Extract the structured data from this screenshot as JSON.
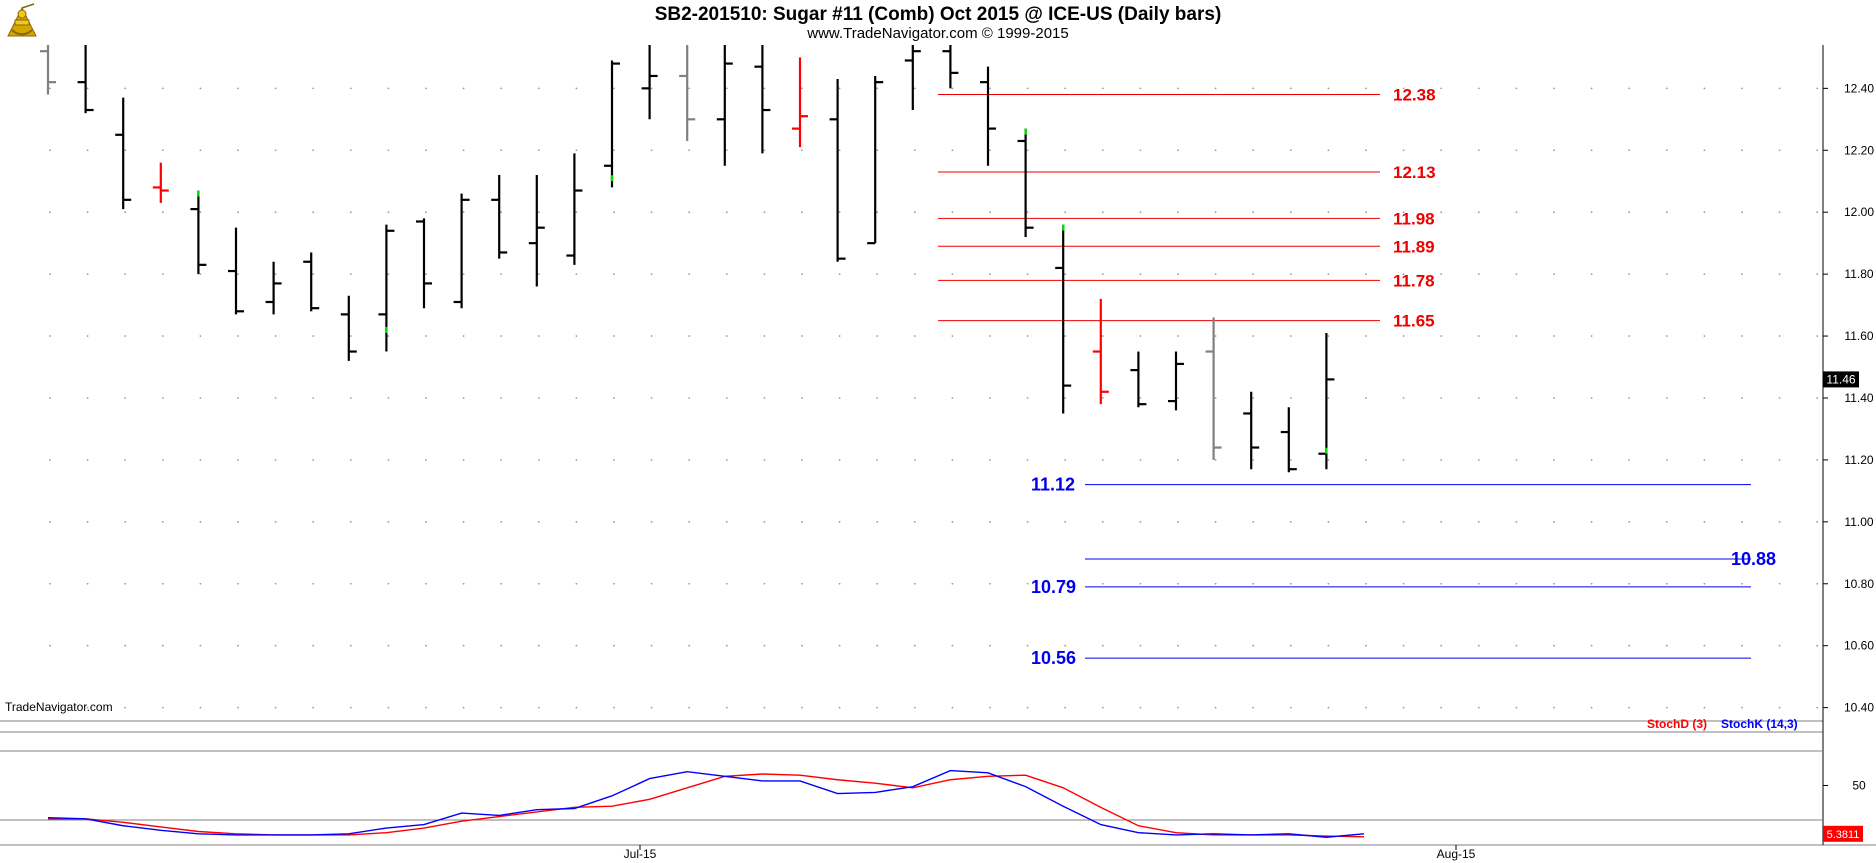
{
  "header": {
    "title": "SB2-201510:  Sugar #11 (Comb) Oct 2015 @ ICE-US  (Daily bars)",
    "subtitle": "www.TradeNavigator.com © 1999-2015",
    "watermark": "TradeNavigator.com"
  },
  "colors": {
    "bar_down": "#000000",
    "bar_up_tick": "#00dd00",
    "bar_outside": "#ff0000",
    "bar_inside": "#808080",
    "resistance": "#ee0000",
    "support": "#0000ee",
    "stoch_d": "#ff0000",
    "stoch_k": "#0000ff",
    "last_price_bg": "#000000",
    "stoch_last_bg": "#ff0000"
  },
  "chart_data": [
    {
      "type": "ohlc",
      "title": "SB2-201510:  Sugar #11 (Comb) Oct 2015 @ ICE-US  (Daily bars)",
      "ylim": [
        10.36,
        12.54
      ],
      "y_ticks": [
        "12.40",
        "12.20",
        "12.00",
        "11.80",
        "11.60",
        "11.40",
        "11.20",
        "11.00",
        "10.80",
        "10.60",
        "10.40"
      ],
      "x_ticks": [
        "Jul-15",
        "Aug-15"
      ],
      "last_price": "11.46",
      "bars": [
        {
          "o": 12.52,
          "h": 12.55,
          "l": 12.38,
          "c": 12.42,
          "t": "gray"
        },
        {
          "o": 12.42,
          "h": 12.55,
          "l": 12.32,
          "c": 12.33,
          "t": "black"
        },
        {
          "o": 12.25,
          "h": 12.37,
          "l": 12.01,
          "c": 12.04,
          "t": "black"
        },
        {
          "o": 12.08,
          "h": 12.16,
          "l": 12.03,
          "c": 12.07,
          "t": "red"
        },
        {
          "o": 12.01,
          "h": 12.07,
          "l": 11.8,
          "c": 11.83,
          "t": "black",
          "g": 12.07
        },
        {
          "o": 11.81,
          "h": 11.95,
          "l": 11.67,
          "c": 11.68,
          "t": "black"
        },
        {
          "o": 11.71,
          "h": 11.84,
          "l": 11.67,
          "c": 11.77,
          "t": "black"
        },
        {
          "o": 11.84,
          "h": 11.87,
          "l": 11.68,
          "c": 11.69,
          "t": "black"
        },
        {
          "o": 11.67,
          "h": 11.73,
          "l": 11.52,
          "c": 11.55,
          "t": "black"
        },
        {
          "o": 11.67,
          "h": 11.96,
          "l": 11.55,
          "c": 11.94,
          "t": "black",
          "g": 11.61
        },
        {
          "o": 11.97,
          "h": 11.98,
          "l": 11.69,
          "c": 11.77,
          "t": "black"
        },
        {
          "o": 11.71,
          "h": 12.06,
          "l": 11.69,
          "c": 12.04,
          "t": "black"
        },
        {
          "o": 12.04,
          "h": 12.12,
          "l": 11.85,
          "c": 11.87,
          "t": "black"
        },
        {
          "o": 11.9,
          "h": 12.12,
          "l": 11.76,
          "c": 11.95,
          "t": "black"
        },
        {
          "o": 11.86,
          "h": 12.19,
          "l": 11.83,
          "c": 12.07,
          "t": "black"
        },
        {
          "o": 12.15,
          "h": 12.49,
          "l": 12.08,
          "c": 12.48,
          "t": "black",
          "g": 12.1
        },
        {
          "o": 12.4,
          "h": 12.56,
          "l": 12.3,
          "c": 12.44,
          "t": "black"
        },
        {
          "o": 12.44,
          "h": 12.56,
          "l": 12.23,
          "c": 12.3,
          "t": "gray"
        },
        {
          "o": 12.3,
          "h": 12.56,
          "l": 12.15,
          "c": 12.48,
          "t": "black"
        },
        {
          "o": 12.47,
          "h": 12.55,
          "l": 12.19,
          "c": 12.33,
          "t": "black"
        },
        {
          "o": 12.27,
          "h": 12.5,
          "l": 12.21,
          "c": 12.31,
          "t": "red"
        },
        {
          "o": 12.3,
          "h": 12.43,
          "l": 11.84,
          "c": 11.85,
          "t": "black"
        },
        {
          "o": 11.9,
          "h": 12.44,
          "l": 11.9,
          "c": 12.42,
          "t": "black"
        },
        {
          "o": 12.49,
          "h": 12.55,
          "l": 12.33,
          "c": 12.52,
          "t": "black"
        },
        {
          "o": 12.52,
          "h": 12.56,
          "l": 12.4,
          "c": 12.45,
          "t": "black"
        },
        {
          "o": 12.42,
          "h": 12.47,
          "l": 12.15,
          "c": 12.27,
          "t": "black"
        },
        {
          "o": 12.23,
          "h": 12.27,
          "l": 11.92,
          "c": 11.95,
          "t": "black",
          "g": 12.27
        },
        {
          "o": 11.82,
          "h": 11.96,
          "l": 11.35,
          "c": 11.44,
          "t": "black",
          "g": 11.96
        },
        {
          "o": 11.55,
          "h": 11.72,
          "l": 11.38,
          "c": 11.42,
          "t": "red"
        },
        {
          "o": 11.49,
          "h": 11.55,
          "l": 11.37,
          "c": 11.38,
          "t": "black"
        },
        {
          "o": 11.39,
          "h": 11.55,
          "l": 11.36,
          "c": 11.51,
          "t": "black"
        },
        {
          "o": 11.55,
          "h": 11.66,
          "l": 11.2,
          "c": 11.24,
          "t": "gray"
        },
        {
          "o": 11.35,
          "h": 11.42,
          "l": 11.17,
          "c": 11.24,
          "t": "black"
        },
        {
          "o": 11.29,
          "h": 11.37,
          "l": 11.16,
          "c": 11.17,
          "t": "black"
        },
        {
          "o": 11.22,
          "h": 11.61,
          "l": 11.17,
          "c": 11.46,
          "t": "black",
          "g": 11.22
        }
      ],
      "levels": [
        {
          "price": 12.38,
          "label": "12.38",
          "kind": "resistance"
        },
        {
          "price": 12.13,
          "label": "12.13",
          "kind": "resistance"
        },
        {
          "price": 11.98,
          "label": "11.98",
          "kind": "resistance"
        },
        {
          "price": 11.89,
          "label": "11.89",
          "kind": "resistance"
        },
        {
          "price": 11.78,
          "label": "11.78",
          "kind": "resistance"
        },
        {
          "price": 11.65,
          "label": "11.65",
          "kind": "resistance"
        },
        {
          "price": 11.12,
          "label": "11.12",
          "kind": "support",
          "label_side": "left"
        },
        {
          "price": 10.88,
          "label": "10.88",
          "kind": "support",
          "label_side": "right"
        },
        {
          "price": 10.79,
          "label": "10.79",
          "kind": "support",
          "label_side": "left"
        },
        {
          "price": 10.56,
          "label": "10.56",
          "kind": "support",
          "label_side": "left"
        }
      ]
    },
    {
      "type": "line",
      "legend": [
        "StochD (3)",
        "StochK (14,3)"
      ],
      "ylim": [
        0,
        100
      ],
      "y_ticks": [
        "50"
      ],
      "ref_lines": [
        80,
        20
      ],
      "last_value": "5.3811",
      "series": [
        {
          "name": "StochD (3)",
          "values": [
            21,
            21,
            18,
            14,
            10,
            8,
            7,
            7,
            7,
            9,
            13,
            19,
            23,
            27,
            31,
            32,
            38,
            48,
            58,
            60,
            59,
            55,
            52,
            48,
            55,
            58,
            59,
            48,
            31,
            15,
            9,
            7,
            7,
            7,
            6,
            5.4
          ]
        },
        {
          "name": "StochK (14,3)",
          "values": [
            22,
            21,
            15,
            11,
            8,
            7,
            7,
            7,
            8,
            13,
            16,
            26,
            24,
            29,
            30,
            41,
            56,
            62,
            58,
            54,
            54,
            43,
            44,
            49,
            63,
            61,
            49,
            32,
            16,
            9,
            7,
            8,
            7,
            8,
            5,
            8
          ]
        }
      ]
    }
  ]
}
